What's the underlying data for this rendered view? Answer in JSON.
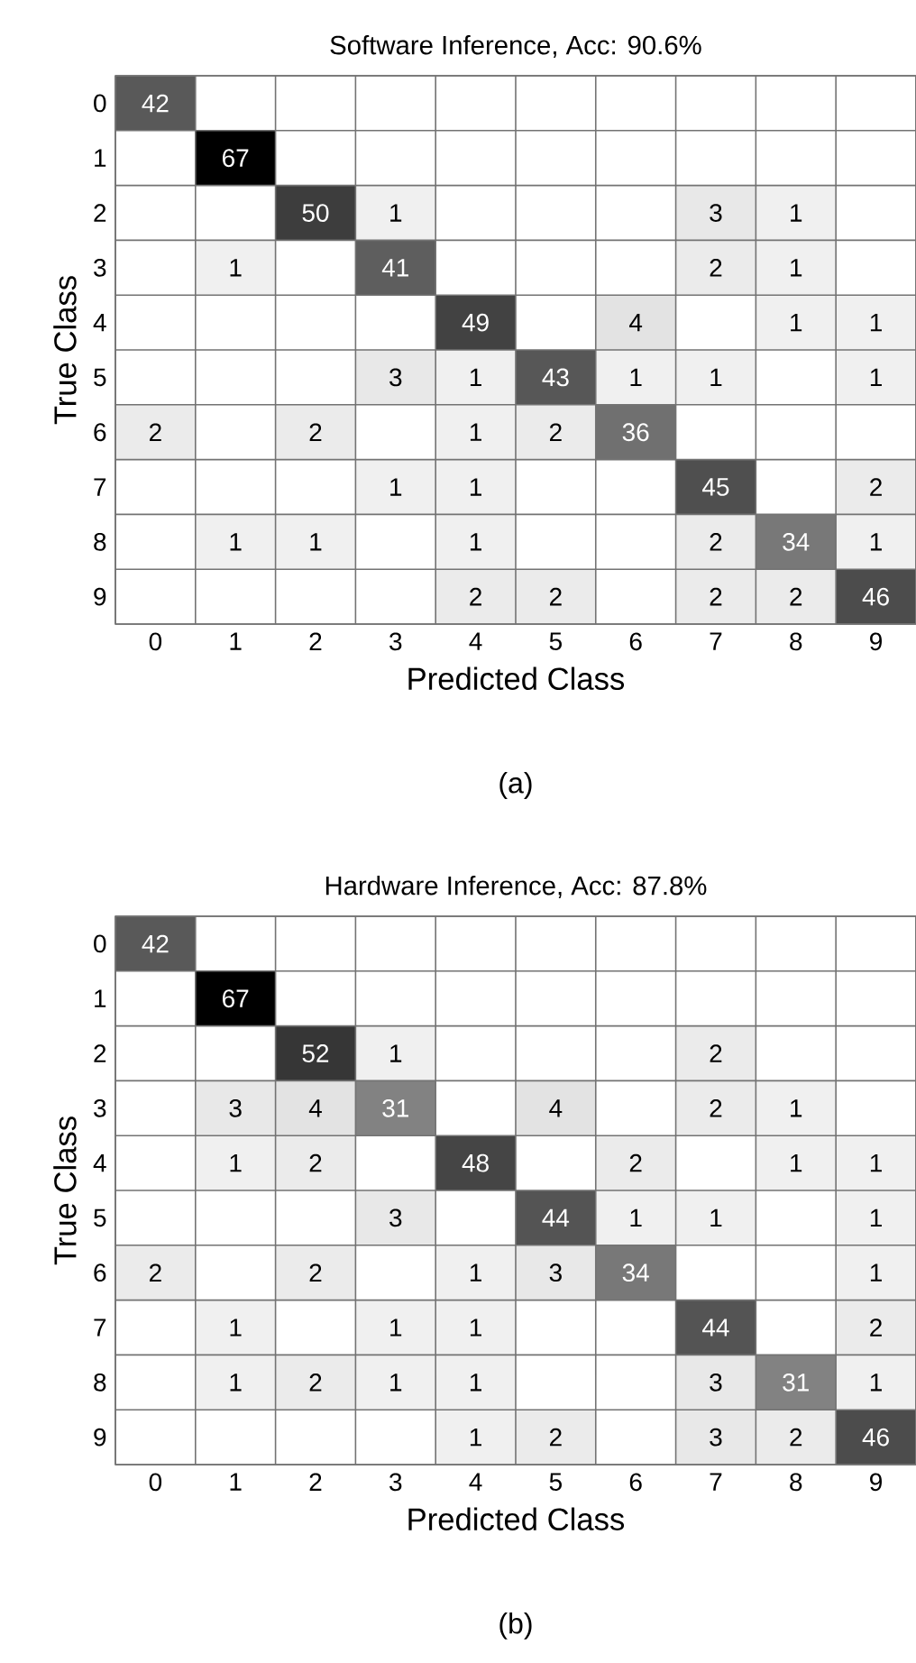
{
  "chart_data": [
    {
      "type": "heatmap",
      "data_labels": true,
      "title": "Software Inference, Acc: 90.6%",
      "xlabel": "Predicted Class",
      "ylabel": "True Class",
      "annotations": [
        "(a)"
      ],
      "categories": [
        "0",
        "1",
        "2",
        "3",
        "4",
        "5",
        "6",
        "7",
        "8",
        "9"
      ],
      "y_categories": [
        "0",
        "1",
        "2",
        "3",
        "4",
        "5",
        "6",
        "7",
        "8",
        "9"
      ],
      "cells": [
        [
          42,
          null,
          null,
          null,
          null,
          null,
          null,
          null,
          null,
          null
        ],
        [
          null,
          67,
          null,
          null,
          null,
          null,
          null,
          null,
          null,
          null
        ],
        [
          null,
          null,
          50,
          1,
          null,
          null,
          null,
          3,
          1,
          null
        ],
        [
          null,
          1,
          null,
          41,
          null,
          null,
          null,
          2,
          1,
          null
        ],
        [
          null,
          null,
          null,
          null,
          49,
          null,
          4,
          null,
          1,
          1
        ],
        [
          null,
          null,
          null,
          3,
          1,
          43,
          1,
          1,
          null,
          1
        ],
        [
          2,
          null,
          2,
          null,
          1,
          2,
          36,
          null,
          null,
          null
        ],
        [
          null,
          null,
          null,
          1,
          1,
          null,
          null,
          45,
          null,
          2
        ],
        [
          null,
          1,
          1,
          null,
          1,
          null,
          null,
          2,
          34,
          1
        ],
        [
          null,
          null,
          null,
          null,
          2,
          2,
          null,
          2,
          2,
          46
        ]
      ]
    },
    {
      "type": "heatmap",
      "data_labels": true,
      "title": "Hardware Inference, Acc: 87.8%",
      "xlabel": "Predicted Class",
      "ylabel": "True Class",
      "annotations": [
        "(b)"
      ],
      "categories": [
        "0",
        "1",
        "2",
        "3",
        "4",
        "5",
        "6",
        "7",
        "8",
        "9"
      ],
      "y_categories": [
        "0",
        "1",
        "2",
        "3",
        "4",
        "5",
        "6",
        "7",
        "8",
        "9"
      ],
      "cells": [
        [
          42,
          null,
          null,
          null,
          null,
          null,
          null,
          null,
          null,
          null
        ],
        [
          null,
          67,
          null,
          null,
          null,
          null,
          null,
          null,
          null,
          null
        ],
        [
          null,
          null,
          52,
          1,
          null,
          null,
          null,
          2,
          null,
          null
        ],
        [
          null,
          3,
          4,
          31,
          null,
          4,
          null,
          2,
          1,
          null
        ],
        [
          null,
          1,
          2,
          null,
          48,
          null,
          2,
          null,
          1,
          1
        ],
        [
          null,
          null,
          null,
          3,
          null,
          44,
          1,
          1,
          null,
          1
        ],
        [
          2,
          null,
          2,
          null,
          1,
          3,
          34,
          null,
          null,
          1
        ],
        [
          null,
          1,
          null,
          1,
          1,
          null,
          null,
          44,
          null,
          2
        ],
        [
          null,
          1,
          2,
          1,
          1,
          null,
          null,
          3,
          31,
          1
        ],
        [
          null,
          null,
          null,
          null,
          1,
          2,
          null,
          3,
          2,
          46
        ]
      ]
    }
  ]
}
